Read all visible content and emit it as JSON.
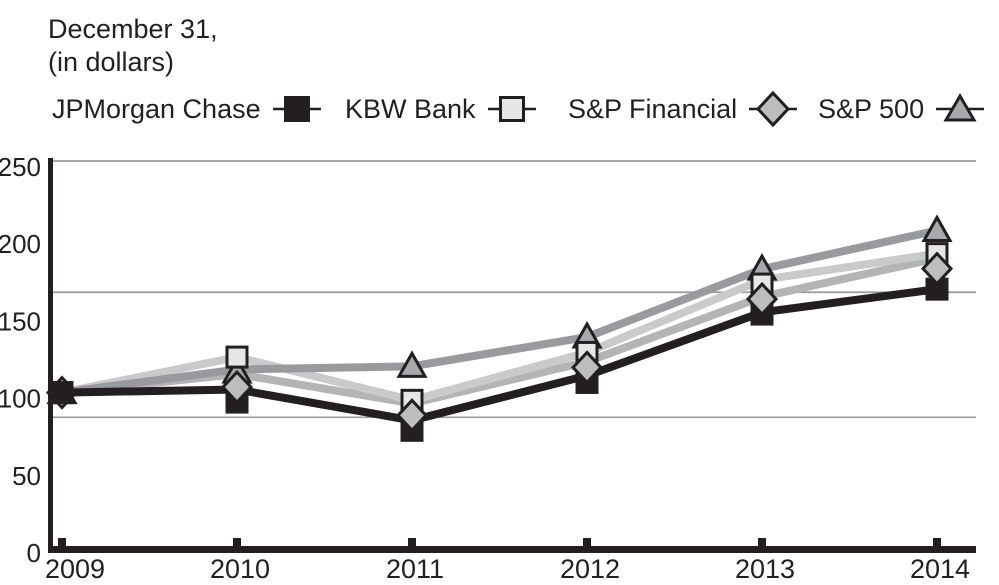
{
  "title": {
    "line1": "December 31,",
    "line2": "(in dollars)"
  },
  "chart_data": {
    "type": "line",
    "title": "December 31, (in dollars)",
    "x": [
      2009,
      2010,
      2011,
      2012,
      2013,
      2014
    ],
    "x_labels": [
      "2009",
      "2010",
      "2011",
      "2012",
      "2013",
      "2014"
    ],
    "y_ticks": [
      250,
      200,
      150,
      100,
      50,
      0
    ],
    "ylim": [
      0,
      250
    ],
    "grid": true,
    "gridline_values": [
      250,
      165,
      84
    ],
    "legend_position": "top",
    "series": [
      {
        "name": "JPMorgan Chase",
        "marker": "square",
        "line_color": "#231f20",
        "marker_fill": "#231f20",
        "values": [
          100,
          102,
          82,
          111,
          152,
          167
        ]
      },
      {
        "name": "KBW Bank",
        "marker": "square",
        "line_color": "#c9cacc",
        "marker_fill": "#e5e6e7",
        "values": [
          100,
          123,
          95,
          126,
          173,
          190
        ]
      },
      {
        "name": "S&P Financial",
        "marker": "diamond",
        "line_color": "#b2b4b6",
        "marker_fill": "#bbbdbf",
        "values": [
          100,
          112,
          93,
          120,
          162,
          187
        ]
      },
      {
        "name": "S&P 500",
        "marker": "triangle",
        "line_color": "#989a9d",
        "marker_fill": "#a7a9ac",
        "values": [
          100,
          115,
          117,
          136,
          180,
          205
        ]
      }
    ],
    "colors": {
      "axis": "#231f20",
      "grid": "#9b9b9b",
      "text": "#231f20",
      "marker_stroke": "#231f20"
    },
    "z_order": {
      "lines": [
        2,
        1,
        3,
        0
      ],
      "markers": [
        [
          3,
          "all"
        ],
        [
          1,
          "all"
        ],
        [
          0,
          "rest"
        ],
        [
          2,
          "all"
        ],
        [
          0,
          "first"
        ]
      ]
    }
  }
}
